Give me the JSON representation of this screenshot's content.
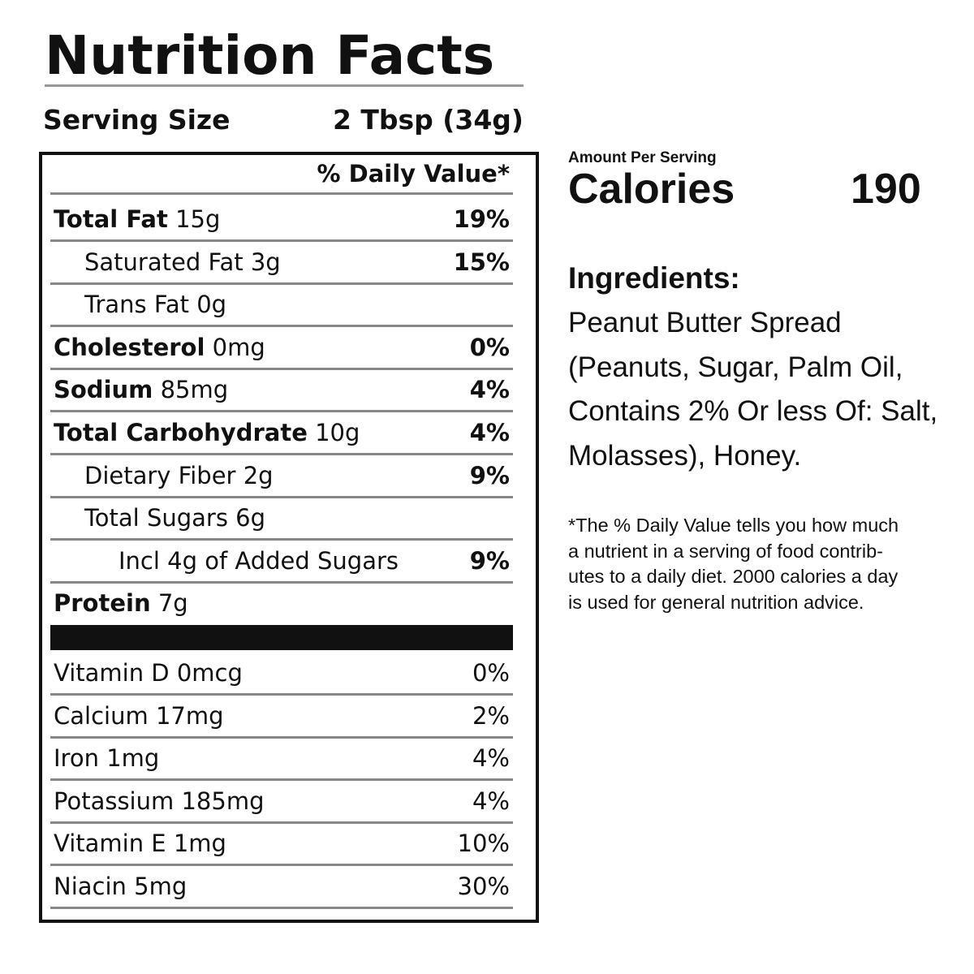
{
  "title": "Nutrition Facts",
  "serving": {
    "label": "Serving Size",
    "value": "2 Tbsp (34g)"
  },
  "table": {
    "header": "% Daily Value*",
    "nutrients": [
      {
        "name": "Total Fat",
        "amount": "15g",
        "dv": "19%"
      },
      {
        "name": "Saturated Fat",
        "amount": "3g",
        "dv": "15%"
      },
      {
        "name": "Trans Fat",
        "amount": "0g"
      },
      {
        "name": "Cholesterol",
        "amount": "0mg",
        "dv": "0%"
      },
      {
        "name": "Sodium",
        "amount": "85mg",
        "dv": "4%"
      },
      {
        "name": "Total Carbohydrate",
        "amount": "10g",
        "dv": "4%"
      },
      {
        "name": "Dietary Fiber",
        "amount": "2g",
        "dv": "9%"
      },
      {
        "name": "Total Sugars",
        "amount": "6g"
      },
      {
        "name": "Incl 4g of Added Sugars",
        "dv": "9%"
      },
      {
        "name": "Protein",
        "amount": "7g"
      }
    ],
    "vitamins": [
      {
        "name": "Vitamin D",
        "amount": "0mcg",
        "dv": "0%"
      },
      {
        "name": "Calcium",
        "amount": "17mg",
        "dv": "2%"
      },
      {
        "name": "Iron",
        "amount": "1mg",
        "dv": "4%"
      },
      {
        "name": "Potassium",
        "amount": "185mg",
        "dv": "4%"
      },
      {
        "name": "Vitamin E",
        "amount": "1mg",
        "dv": "10%"
      },
      {
        "name": "Niacin",
        "amount": "5mg",
        "dv": "30%"
      }
    ]
  },
  "calories": {
    "caption": "Amount Per Serving",
    "label": "Calories",
    "value": "190"
  },
  "ingredients": {
    "heading": "Ingredients:",
    "lines": [
      "Peanut Butter Spread",
      "(Peanuts, Sugar, Palm Oil,",
      "Contains 2% Or less Of: Salt,",
      "Molasses), Honey."
    ]
  },
  "footnote": [
    "*The % Daily Value tells you how much",
    "a nutrient in a serving of food contrib-",
    "utes to a daily diet. 2000 calories a day",
    "is used for general nutrition advice."
  ]
}
